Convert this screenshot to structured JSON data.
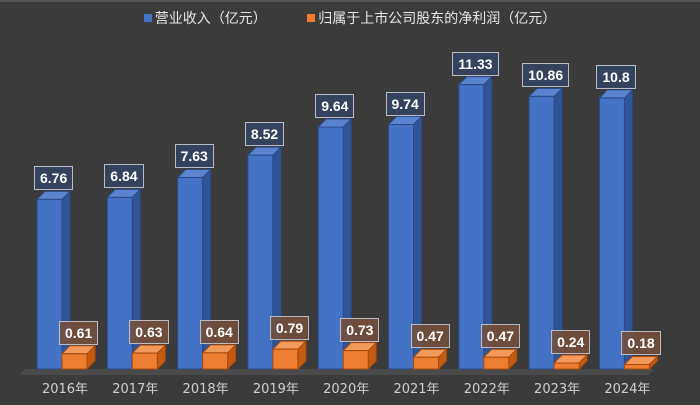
{
  "chart_data": {
    "type": "bar",
    "title": "",
    "xlabel": "",
    "ylabel": "",
    "categories": [
      "2016年",
      "2017年",
      "2018年",
      "2019年",
      "2020年",
      "2021年",
      "2022年",
      "2023年",
      "2024年"
    ],
    "series": [
      {
        "name": "营业收入（亿元）",
        "color": "#4472c4",
        "values": [
          6.76,
          6.84,
          7.63,
          8.52,
          9.64,
          9.74,
          11.33,
          10.86,
          10.8
        ]
      },
      {
        "name": "归属于上市公司股东的净利润（亿元）",
        "color": "#ed7d31",
        "values": [
          0.61,
          0.63,
          0.64,
          0.79,
          0.73,
          0.47,
          0.47,
          0.24,
          0.18
        ]
      }
    ],
    "labels": {
      "revenue": [
        "6.76",
        "6.84",
        "7.63",
        "8.52",
        "9.64",
        "9.74",
        "11.33",
        "10.86",
        "10.8"
      ],
      "profit": [
        "0.61",
        "0.63",
        "0.64",
        "0.79",
        "0.73",
        "0.47",
        "0.47",
        "0.24",
        "0.18"
      ]
    },
    "legend_position": "top",
    "grid": false,
    "style": "3d-clustered-column",
    "ylim": [
      0,
      12
    ]
  },
  "legend": {
    "revenue": "营业收入（亿元）",
    "profit": "归属于上市公司股东的净利润（亿元）"
  },
  "colors": {
    "background": "#3b3b3b",
    "revenue": "#4472c4",
    "profit": "#ed7d31"
  }
}
